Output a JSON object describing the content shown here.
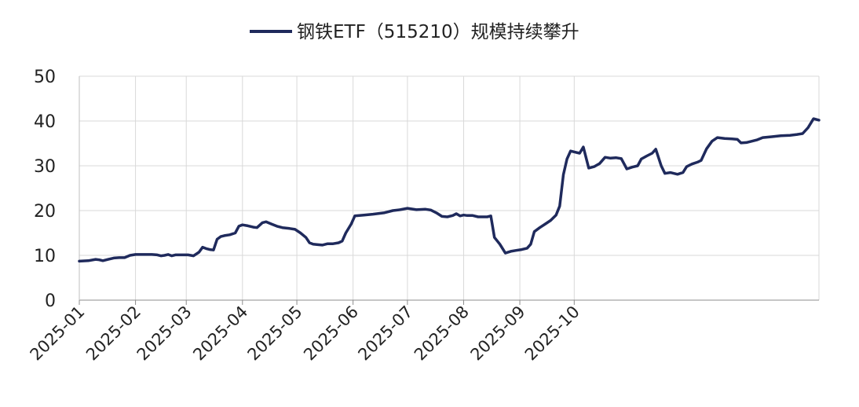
{
  "chart_data": {
    "type": "line",
    "series": [
      {
        "name": "钢铁ETF（515210）规模持续攀升",
        "color": "#1f2a5c",
        "points": [
          [
            "2025-01-01",
            8.7
          ],
          [
            "2025-01-06",
            8.8
          ],
          [
            "2025-01-10",
            9.1
          ],
          [
            "2025-01-12",
            9.0
          ],
          [
            "2025-01-14",
            8.8
          ],
          [
            "2025-01-17",
            9.1
          ],
          [
            "2025-01-20",
            9.4
          ],
          [
            "2025-01-23",
            9.5
          ],
          [
            "2025-01-26",
            9.5
          ],
          [
            "2025-01-29",
            10.0
          ],
          [
            "2025-02-01",
            10.2
          ],
          [
            "2025-02-05",
            10.2
          ],
          [
            "2025-02-10",
            10.2
          ],
          [
            "2025-02-13",
            10.1
          ],
          [
            "2025-02-15",
            9.9
          ],
          [
            "2025-02-17",
            10.0
          ],
          [
            "2025-02-19",
            10.2
          ],
          [
            "2025-02-21",
            9.9
          ],
          [
            "2025-02-23",
            10.1
          ],
          [
            "2025-02-27",
            10.1
          ],
          [
            "2025-03-02",
            10.1
          ],
          [
            "2025-03-05",
            9.9
          ],
          [
            "2025-03-08",
            10.7
          ],
          [
            "2025-03-10",
            11.8
          ],
          [
            "2025-03-12",
            11.5
          ],
          [
            "2025-03-14",
            11.3
          ],
          [
            "2025-03-16",
            11.2
          ],
          [
            "2025-03-18",
            13.6
          ],
          [
            "2025-03-20",
            14.2
          ],
          [
            "2025-03-22",
            14.4
          ],
          [
            "2025-03-25",
            14.6
          ],
          [
            "2025-03-28",
            15.0
          ],
          [
            "2025-03-30",
            16.5
          ],
          [
            "2025-04-01",
            16.8
          ],
          [
            "2025-04-04",
            16.6
          ],
          [
            "2025-04-07",
            16.3
          ],
          [
            "2025-04-09",
            16.2
          ],
          [
            "2025-04-12",
            17.3
          ],
          [
            "2025-04-14",
            17.5
          ],
          [
            "2025-04-17",
            17.0
          ],
          [
            "2025-04-20",
            16.5
          ],
          [
            "2025-04-23",
            16.2
          ],
          [
            "2025-04-27",
            16.0
          ],
          [
            "2025-04-30",
            15.8
          ],
          [
            "2025-05-03",
            15.0
          ],
          [
            "2025-05-06",
            14.0
          ],
          [
            "2025-05-08",
            12.8
          ],
          [
            "2025-05-10",
            12.5
          ],
          [
            "2025-05-12",
            12.4
          ],
          [
            "2025-05-15",
            12.3
          ],
          [
            "2025-05-18",
            12.6
          ],
          [
            "2025-05-21",
            12.6
          ],
          [
            "2025-05-24",
            12.8
          ],
          [
            "2025-05-26",
            13.2
          ],
          [
            "2025-05-28",
            15.0
          ],
          [
            "2025-05-31",
            17.0
          ],
          [
            "2025-06-02",
            18.8
          ],
          [
            "2025-06-07",
            19.0
          ],
          [
            "2025-06-12",
            19.2
          ],
          [
            "2025-06-18",
            19.5
          ],
          [
            "2025-06-23",
            20.0
          ],
          [
            "2025-06-27",
            20.2
          ],
          [
            "2025-07-01",
            20.5
          ],
          [
            "2025-07-06",
            20.2
          ],
          [
            "2025-07-11",
            20.3
          ],
          [
            "2025-07-14",
            20.1
          ],
          [
            "2025-07-17",
            19.5
          ],
          [
            "2025-07-20",
            18.7
          ],
          [
            "2025-07-23",
            18.6
          ],
          [
            "2025-07-26",
            18.9
          ],
          [
            "2025-07-28",
            19.3
          ],
          [
            "2025-07-30",
            18.8
          ],
          [
            "2025-08-01",
            19.0
          ],
          [
            "2025-08-03",
            18.9
          ],
          [
            "2025-08-06",
            18.9
          ],
          [
            "2025-08-09",
            18.6
          ],
          [
            "2025-08-12",
            18.6
          ],
          [
            "2025-08-14",
            18.6
          ],
          [
            "2025-08-16",
            18.8
          ],
          [
            "2025-08-18",
            14.0
          ],
          [
            "2025-08-21",
            12.5
          ],
          [
            "2025-08-24",
            10.5
          ],
          [
            "2025-08-27",
            10.9
          ],
          [
            "2025-08-30",
            11.1
          ],
          [
            "2025-09-02",
            11.3
          ],
          [
            "2025-09-05",
            11.6
          ],
          [
            "2025-09-07",
            12.5
          ],
          [
            "2025-09-09",
            15.3
          ],
          [
            "2025-09-12",
            16.2
          ],
          [
            "2025-09-15",
            17.0
          ],
          [
            "2025-09-18",
            17.8
          ],
          [
            "2025-09-21",
            19.0
          ],
          [
            "2025-09-23",
            21.0
          ],
          [
            "2025-09-25",
            28.0
          ],
          [
            "2025-09-27",
            31.5
          ],
          [
            "2025-09-29",
            33.3
          ],
          [
            "2025-10-02",
            33.0
          ],
          [
            "2025-10-04",
            32.8
          ],
          [
            "2025-10-06",
            34.2
          ],
          [
            "2025-10-09",
            29.5
          ],
          [
            "2025-10-12",
            29.8
          ],
          [
            "2025-10-15",
            30.5
          ],
          [
            "2025-10-18",
            31.9
          ],
          [
            "2025-10-21",
            31.7
          ],
          [
            "2025-10-24",
            31.8
          ],
          [
            "2025-10-27",
            31.6
          ],
          [
            "2025-10-30",
            29.3
          ],
          [
            "2025-11-02",
            29.7
          ],
          [
            "2025-11-05",
            30.0
          ],
          [
            "2025-11-07",
            31.5
          ],
          [
            "2025-11-10",
            32.2
          ],
          [
            "2025-11-13",
            32.8
          ],
          [
            "2025-11-15",
            33.7
          ],
          [
            "2025-11-18",
            30.0
          ],
          [
            "2025-11-20",
            28.3
          ],
          [
            "2025-11-23",
            28.5
          ],
          [
            "2025-11-25",
            28.3
          ],
          [
            "2025-11-27",
            28.1
          ],
          [
            "2025-11-30",
            28.5
          ],
          [
            "2025-12-02",
            29.8
          ],
          [
            "2025-12-05",
            30.4
          ],
          [
            "2025-12-08",
            30.8
          ],
          [
            "2025-12-10",
            31.2
          ],
          [
            "2025-12-13",
            33.8
          ],
          [
            "2025-12-16",
            35.5
          ],
          [
            "2025-12-19",
            36.3
          ],
          [
            "2025-12-23",
            36.1
          ],
          [
            "2025-12-27",
            36.0
          ],
          [
            "2025-12-30",
            35.9
          ],
          [
            "2026-01-01",
            35.1
          ],
          [
            "2026-01-04",
            35.2
          ],
          [
            "2026-01-07",
            35.5
          ],
          [
            "2026-01-10",
            35.8
          ],
          [
            "2026-01-13",
            36.3
          ],
          [
            "2026-01-18",
            36.5
          ],
          [
            "2026-01-23",
            36.7
          ],
          [
            "2026-01-28",
            36.8
          ],
          [
            "2026-02-01",
            37.0
          ],
          [
            "2026-02-04",
            37.2
          ],
          [
            "2026-02-07",
            38.5
          ],
          [
            "2026-02-10",
            40.5
          ],
          [
            "2026-02-13",
            40.2
          ]
        ]
      }
    ],
    "xlabel": "",
    "ylabel": "",
    "ylim": [
      0,
      50
    ],
    "yticks": [
      0,
      10,
      20,
      30,
      40,
      50
    ],
    "xlim": [
      "2025-01-01",
      "2026-02-13"
    ],
    "xtick_values": [
      "2025-01-01",
      "2025-02-01",
      "2025-03-01",
      "2025-04-01",
      "2025-05-01",
      "2025-06-01",
      "2025-07-01",
      "2025-08-01",
      "2025-09-01",
      "2025-10-01"
    ],
    "xtick_labels": [
      "2025-01",
      "2025-02",
      "2025-03",
      "2025-04",
      "2025-05",
      "2025-06",
      "2025-07",
      "2025-08",
      "2025-09",
      "2025-10"
    ],
    "grid": true,
    "legend_position": "top-center"
  }
}
